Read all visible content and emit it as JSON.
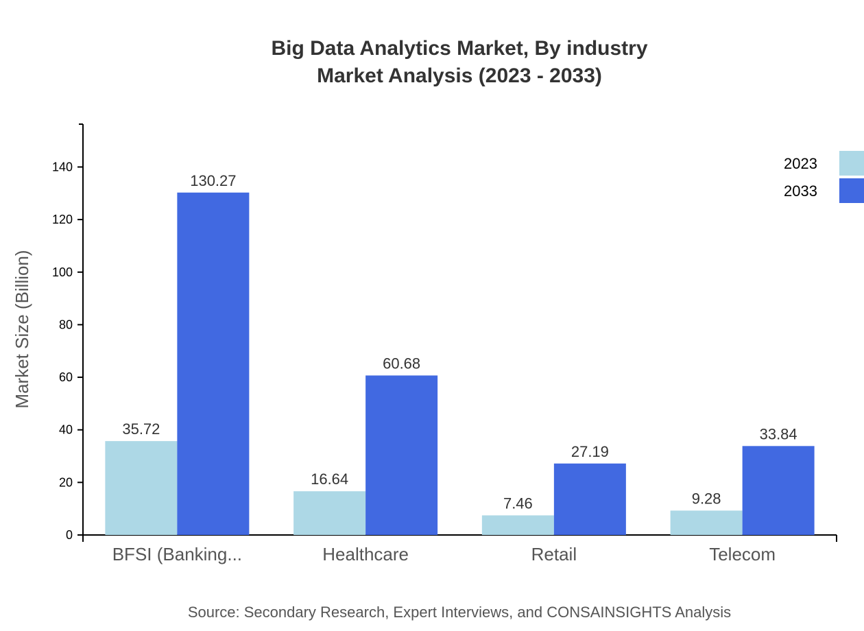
{
  "chart_data": {
    "type": "bar",
    "title": "Big Data Analytics Market, By industry",
    "subtitle": "Market Analysis (2023 - 2033)",
    "xlabel": "",
    "ylabel": "Market Size (Billion)",
    "ylim": [
      0,
      156.3
    ],
    "yticks": [
      0,
      20,
      40,
      60,
      80,
      100,
      120,
      140
    ],
    "grid": false,
    "legend_position": "top-right",
    "categories": [
      "BFSI (Banking...",
      "Healthcare",
      "Retail",
      "Telecom"
    ],
    "series": [
      {
        "name": "2023",
        "color": "#add8e6",
        "values": [
          35.72,
          16.64,
          7.46,
          9.28
        ]
      },
      {
        "name": "2033",
        "color": "#4169e1",
        "values": [
          130.27,
          60.68,
          27.19,
          33.84
        ]
      }
    ],
    "source": "Source: Secondary Research, Expert Interviews, and CONSAINSIGHTS Analysis"
  }
}
